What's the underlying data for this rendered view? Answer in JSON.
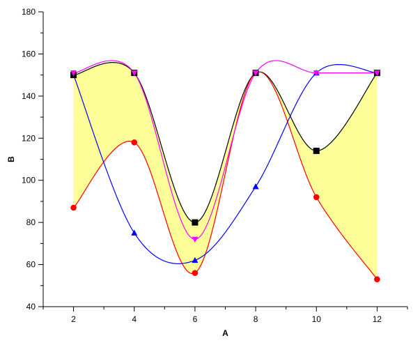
{
  "chart_data": {
    "type": "line",
    "title": "",
    "xlabel": "A",
    "ylabel": "B",
    "xlim": [
      1,
      13
    ],
    "ylim": [
      40,
      180
    ],
    "x_ticks": [
      2,
      4,
      6,
      8,
      10,
      12
    ],
    "y_ticks": [
      40,
      60,
      80,
      100,
      120,
      140,
      160,
      180
    ],
    "x": [
      2,
      4,
      6,
      8,
      10,
      12
    ],
    "grid": false,
    "fill_between": {
      "upper_series": 0,
      "lower_series": 1,
      "color": "#ffff99"
    },
    "series": [
      {
        "values": [
          150,
          151,
          80,
          151,
          114,
          151
        ],
        "color": "#000000",
        "marker": "square"
      },
      {
        "values": [
          87,
          118,
          56,
          151,
          92,
          53
        ],
        "color": "#ff0000",
        "marker": "circle"
      },
      {
        "values": [
          150,
          75,
          62,
          97,
          151,
          151
        ],
        "color": "#0000ff",
        "marker": "triangle-up"
      },
      {
        "values": [
          151,
          151,
          72,
          151,
          151,
          151
        ],
        "color": "#ff00ff",
        "marker": "triangle-down"
      }
    ]
  }
}
